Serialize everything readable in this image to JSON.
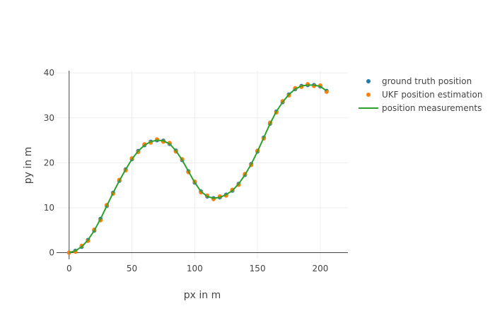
{
  "chart_data": {
    "type": "scatter",
    "title": "",
    "xlabel": "px in m",
    "ylabel": "py in m",
    "xlim": [
      -10,
      222
    ],
    "ylim": [
      -1.5,
      40.5
    ],
    "xticks": [
      0,
      50,
      100,
      150,
      200
    ],
    "yticks": [
      0,
      10,
      20,
      30,
      40
    ],
    "grid": true,
    "legend_position": "top-right",
    "series": [
      {
        "name": "ground truth position",
        "mode": "markers",
        "color": "#1f77b4",
        "x": [
          0,
          5,
          10,
          15,
          20,
          25,
          30,
          35,
          40,
          45,
          50,
          55,
          60,
          65,
          70,
          75,
          80,
          85,
          90,
          95,
          100,
          105,
          110,
          115,
          120,
          125,
          130,
          135,
          140,
          145,
          150,
          155,
          160,
          165,
          170,
          175,
          180,
          185,
          190,
          195,
          200,
          205
        ],
        "y": [
          0,
          0.4,
          1.3,
          2.8,
          4.9,
          7.5,
          10.4,
          13.3,
          16.0,
          18.5,
          20.8,
          22.6,
          23.9,
          24.7,
          25.0,
          24.9,
          24.2,
          22.7,
          20.6,
          18.1,
          15.6,
          13.6,
          12.5,
          12.1,
          12.3,
          12.9,
          13.8,
          15.3,
          17.3,
          19.7,
          22.5,
          25.6,
          28.7,
          31.4,
          33.5,
          35.2,
          36.4,
          37.1,
          37.3,
          37.3,
          37.0,
          36.0
        ]
      },
      {
        "name": "UKF position estimation",
        "mode": "markers",
        "color": "#ff7f0e",
        "x": [
          0,
          5,
          10,
          15,
          20,
          25,
          30,
          35,
          40,
          45,
          50,
          55,
          60,
          65,
          70,
          75,
          80,
          85,
          90,
          95,
          100,
          105,
          110,
          115,
          120,
          125,
          130,
          135,
          140,
          145,
          150,
          155,
          160,
          165,
          170,
          175,
          180,
          185,
          190,
          195,
          200,
          205
        ],
        "y": [
          0,
          0.2,
          1.5,
          2.6,
          5.1,
          7.2,
          10.6,
          13.1,
          16.2,
          18.3,
          21.0,
          22.4,
          24.1,
          24.5,
          25.2,
          24.7,
          24.4,
          22.5,
          20.8,
          17.9,
          15.8,
          13.4,
          12.7,
          11.9,
          12.5,
          12.7,
          14.0,
          15.1,
          17.5,
          19.5,
          22.7,
          25.4,
          28.9,
          31.2,
          33.7,
          35.0,
          36.6,
          36.9,
          37.5,
          37.1,
          37.2,
          35.8
        ]
      },
      {
        "name": "position measurements",
        "mode": "lines",
        "color": "#2ca02c",
        "x": [
          0,
          5,
          10,
          15,
          20,
          25,
          30,
          35,
          40,
          45,
          50,
          55,
          60,
          65,
          70,
          75,
          80,
          85,
          90,
          95,
          100,
          105,
          110,
          115,
          120,
          125,
          130,
          135,
          140,
          145,
          150,
          155,
          160,
          165,
          170,
          175,
          180,
          185,
          190,
          195,
          200,
          205
        ],
        "y": [
          0,
          0.4,
          1.3,
          2.8,
          4.9,
          7.5,
          10.4,
          13.3,
          16.0,
          18.5,
          20.8,
          22.6,
          23.9,
          24.7,
          25.0,
          24.9,
          24.2,
          22.7,
          20.6,
          18.1,
          15.6,
          13.6,
          12.5,
          12.1,
          12.3,
          12.9,
          13.8,
          15.3,
          17.3,
          19.7,
          22.5,
          25.6,
          28.7,
          31.4,
          33.5,
          35.2,
          36.4,
          37.1,
          37.3,
          37.3,
          37.0,
          36.0
        ]
      }
    ]
  }
}
